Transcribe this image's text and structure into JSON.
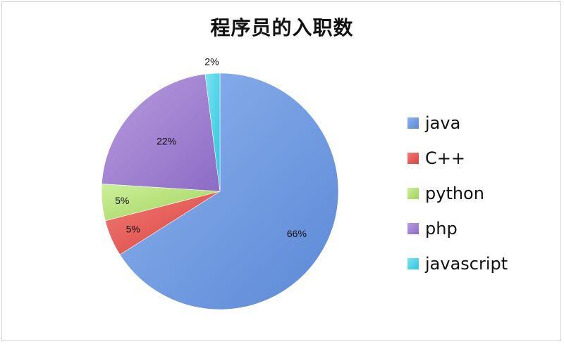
{
  "chart_data": {
    "type": "pie",
    "title": "程序员的入职数",
    "categories": [
      "java",
      "C++",
      "python",
      "php",
      "javascript"
    ],
    "values": [
      66,
      5,
      5,
      22,
      2
    ],
    "labels": [
      "66%",
      "5%",
      "5%",
      "22%",
      "2%"
    ],
    "colors": [
      "#7aa4e6",
      "#e8605c",
      "#b7e27a",
      "#a384d2",
      "#52d6ea"
    ],
    "legend_position": "right",
    "start": "top, clockwise"
  }
}
